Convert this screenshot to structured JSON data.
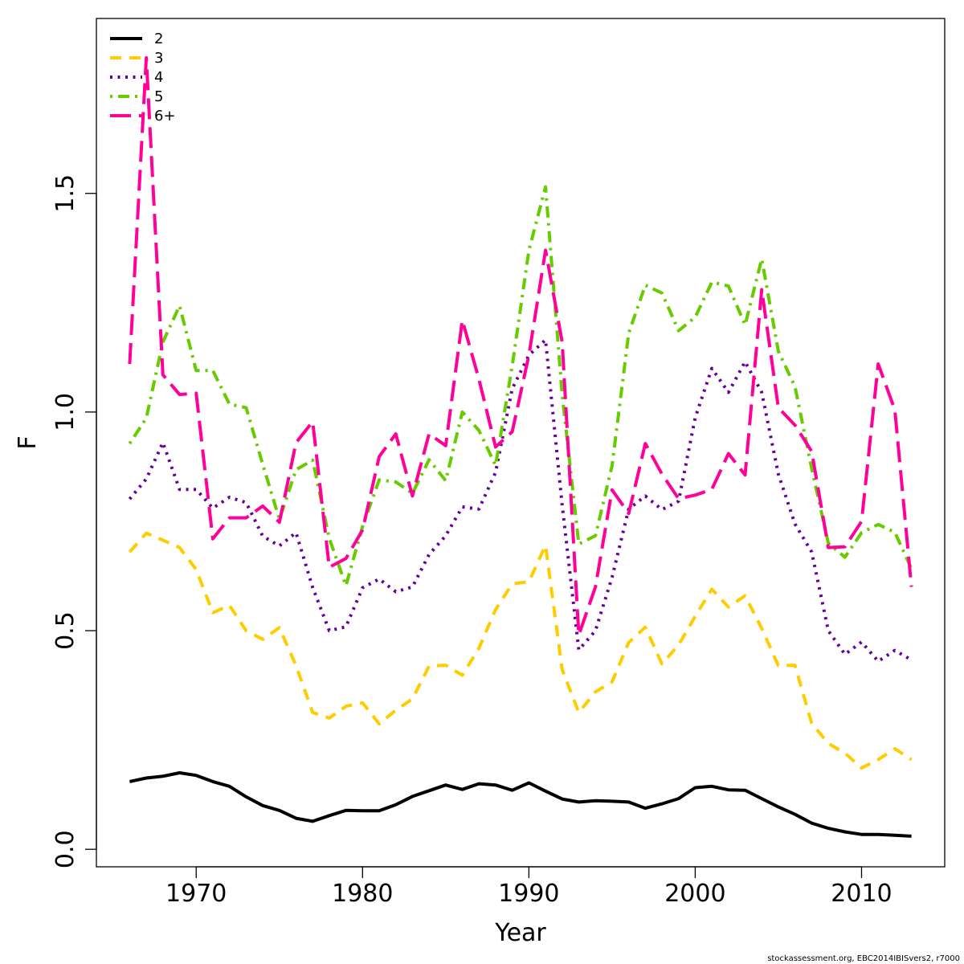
{
  "chart_data": {
    "type": "line",
    "title": "",
    "xlabel": "Year",
    "ylabel": "F",
    "xlim": [
      1964,
      2015
    ],
    "ylim": [
      -0.04,
      1.9
    ],
    "x_ticks": [
      1970,
      1980,
      1990,
      2000,
      2010
    ],
    "x_tick_labels": [
      "1970",
      "1980",
      "1990",
      "2000",
      "2010"
    ],
    "y_ticks": [
      0.0,
      0.5,
      1.0,
      1.5
    ],
    "y_tick_labels": [
      "0.0",
      "0.5",
      "1.0",
      "1.5"
    ],
    "grid": false,
    "legend_position": "top-left",
    "x": [
      1966,
      1967,
      1968,
      1969,
      1970,
      1971,
      1972,
      1973,
      1974,
      1975,
      1976,
      1977,
      1978,
      1979,
      1980,
      1981,
      1982,
      1983,
      1984,
      1985,
      1986,
      1987,
      1988,
      1989,
      1990,
      1991,
      1992,
      1993,
      1994,
      1995,
      1996,
      1997,
      1998,
      1999,
      2000,
      2001,
      2002,
      2003,
      2004,
      2005,
      2006,
      2007,
      2008,
      2009,
      2010,
      2011,
      2012,
      2013
    ],
    "series": [
      {
        "name": "2",
        "color": "#000000",
        "dash": "solid",
        "values": [
          0.155,
          0.163,
          0.167,
          0.175,
          0.169,
          0.155,
          0.144,
          0.12,
          0.1,
          0.089,
          0.071,
          0.064,
          0.077,
          0.089,
          0.088,
          0.088,
          0.102,
          0.121,
          0.134,
          0.147,
          0.137,
          0.15,
          0.147,
          0.135,
          0.152,
          0.133,
          0.115,
          0.108,
          0.111,
          0.11,
          0.108,
          0.094,
          0.104,
          0.116,
          0.141,
          0.144,
          0.136,
          0.135,
          0.116,
          0.097,
          0.08,
          0.06,
          0.048,
          0.04,
          0.034,
          0.034,
          0.032,
          0.03
        ]
      },
      {
        "name": "3",
        "color": "#FFCC00",
        "dash": "dashed",
        "values": [
          0.68,
          0.723,
          0.707,
          0.69,
          0.64,
          0.541,
          0.558,
          0.5,
          0.48,
          0.507,
          0.42,
          0.313,
          0.3,
          0.327,
          0.335,
          0.287,
          0.318,
          0.344,
          0.419,
          0.421,
          0.398,
          0.46,
          0.548,
          0.607,
          0.612,
          0.695,
          0.411,
          0.313,
          0.36,
          0.383,
          0.473,
          0.508,
          0.424,
          0.467,
          0.533,
          0.595,
          0.554,
          0.58,
          0.505,
          0.42,
          0.421,
          0.288,
          0.242,
          0.22,
          0.186,
          0.205,
          0.23,
          0.205
        ]
      },
      {
        "name": "4",
        "color": "#660099",
        "dash": "dotted",
        "values": [
          0.801,
          0.847,
          0.93,
          0.823,
          0.823,
          0.78,
          0.805,
          0.793,
          0.716,
          0.694,
          0.724,
          0.599,
          0.5,
          0.509,
          0.598,
          0.618,
          0.589,
          0.6,
          0.674,
          0.717,
          0.783,
          0.778,
          0.862,
          1.053,
          1.13,
          1.165,
          0.787,
          0.456,
          0.5,
          0.622,
          0.778,
          0.808,
          0.777,
          0.796,
          0.987,
          1.1,
          1.045,
          1.115,
          1.045,
          0.858,
          0.744,
          0.68,
          0.5,
          0.446,
          0.474,
          0.43,
          0.455,
          0.433
        ]
      },
      {
        "name": "5",
        "color": "#66CC00",
        "dash": "dashdot",
        "values": [
          0.928,
          0.986,
          1.16,
          1.243,
          1.095,
          1.095,
          1.018,
          1.01,
          0.88,
          0.755,
          0.868,
          0.89,
          0.711,
          0.603,
          0.738,
          0.845,
          0.84,
          0.814,
          0.891,
          0.843,
          1.0,
          0.958,
          0.878,
          1.105,
          1.37,
          1.515,
          1.04,
          0.698,
          0.717,
          0.877,
          1.18,
          1.29,
          1.272,
          1.186,
          1.217,
          1.297,
          1.288,
          1.199,
          1.35,
          1.139,
          1.058,
          0.871,
          0.7,
          0.668,
          0.724,
          0.743,
          0.725,
          0.642
        ]
      },
      {
        "name": "6+",
        "color": "#FF0099",
        "dash": "longdash",
        "values": [
          1.11,
          1.81,
          1.085,
          1.04,
          1.043,
          0.71,
          0.758,
          0.758,
          0.785,
          0.748,
          0.93,
          0.978,
          0.645,
          0.665,
          0.73,
          0.898,
          0.95,
          0.808,
          0.95,
          0.923,
          1.21,
          1.075,
          0.92,
          0.955,
          1.13,
          1.37,
          1.16,
          0.49,
          0.6,
          0.822,
          0.768,
          0.928,
          0.858,
          0.802,
          0.81,
          0.823,
          0.905,
          0.856,
          1.28,
          1.01,
          0.97,
          0.91,
          0.69,
          0.692,
          0.75,
          1.11,
          1.005,
          0.6
        ]
      }
    ]
  },
  "credit": "stockassessment.org, EBC2014IBISvers2, r7000"
}
